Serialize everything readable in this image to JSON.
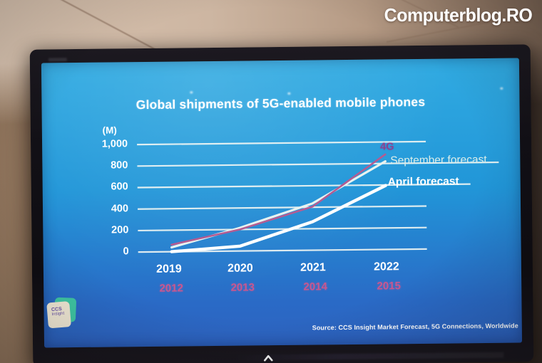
{
  "watermark": {
    "text": "Computerblog.RO"
  },
  "tv": {
    "logo_icon": "chevron-up"
  },
  "slide": {
    "logo": {
      "line1": "CCS",
      "line2": "Insight"
    }
  },
  "chart_data": {
    "type": "line",
    "title": "Global shipments of 5G-enabled mobile phones",
    "y_axis_unit": "(M)",
    "ylim": [
      0,
      1000
    ],
    "y_ticks": [
      "1,000",
      "800",
      "600",
      "400",
      "200",
      "0"
    ],
    "y_tick_values": [
      1000,
      800,
      600,
      400,
      200,
      0
    ],
    "x_categories_5g": [
      "2019",
      "2020",
      "2021",
      "2022"
    ],
    "x_categories_4g": [
      "2012",
      "2013",
      "2014",
      "2015"
    ],
    "x_axis_5g_color": "#ffffff",
    "x_axis_4g_color": "#c9578f",
    "grid": true,
    "legend_position": "line-end-labels",
    "series": [
      {
        "name": "4G",
        "x_axis": "4g-years",
        "color": "#b2578f",
        "label_color": "#8a4392",
        "values": [
          65,
          200,
          405,
          885
        ]
      },
      {
        "name": "September forecast",
        "x_axis": "5g-years",
        "color": "#e7f3f0",
        "label_color": "#dceeea",
        "values": [
          40,
          215,
          435,
          820
        ]
      },
      {
        "name": "April forecast",
        "x_axis": "5g-years",
        "color": "#ffffff",
        "label_color": "#ffffff",
        "values": [
          0,
          45,
          265,
          595
        ]
      }
    ],
    "source": "Source: CCS Insight Market Forecast, 5G Connections, Worldwide"
  }
}
